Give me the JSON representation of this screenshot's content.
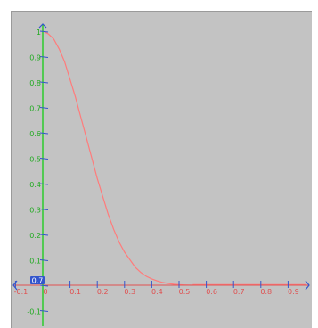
{
  "chart_data": {
    "type": "line",
    "title": "",
    "xlabel": "",
    "ylabel": "",
    "xlim": [
      -0.12,
      1.0
    ],
    "ylim": [
      -0.12,
      1.02
    ],
    "x_ticks": [
      -0.1,
      0,
      0.1,
      0.2,
      0.3,
      0.4,
      0.5,
      0.6,
      0.7,
      0.8,
      0.9
    ],
    "x_tick_labels": [
      "-0.1",
      "0",
      "0.1",
      "0.2",
      "0.3",
      "0.4",
      "0.5",
      "0.6",
      "0.7",
      "0.8",
      "0.9"
    ],
    "y_ticks": [
      -0.1,
      0,
      0.1,
      0.2,
      0.3,
      0.4,
      0.5,
      0.6,
      0.7,
      0.8,
      0.9,
      1.0
    ],
    "y_tick_labels": [
      "-0.1",
      "0",
      "0.1",
      "0.2",
      "0.3",
      "0.4",
      "0.5",
      "0.6",
      "0.7",
      "0.8",
      "0.9",
      "1"
    ],
    "cursor_readout": "0.7",
    "grid": false,
    "legend": "none",
    "colors": {
      "background": "#c3c3c3",
      "curve": "#ff7b7b",
      "x_axis": "#e05050",
      "y_axis": "#22cc22",
      "x_tick_labels": "#e05050",
      "y_tick_labels": "#22aa22",
      "axis_arrows": "#3355cc",
      "readout_box": "#3355cc",
      "readout_text": "#ffffff"
    },
    "series": [
      {
        "x": [
          0,
          0.02,
          0.04,
          0.06,
          0.08,
          0.1,
          0.12,
          0.14,
          0.16,
          0.18,
          0.2,
          0.22,
          0.24,
          0.26,
          0.28,
          0.3,
          0.32,
          0.34,
          0.36,
          0.38,
          0.4,
          0.42,
          0.44,
          0.46,
          0.48,
          0.5,
          0.52,
          0.55
        ],
        "y": [
          1.0,
          0.99,
          0.97,
          0.93,
          0.88,
          0.81,
          0.74,
          0.66,
          0.58,
          0.5,
          0.42,
          0.35,
          0.28,
          0.22,
          0.17,
          0.13,
          0.1,
          0.07,
          0.05,
          0.035,
          0.025,
          0.017,
          0.011,
          0.007,
          0.004,
          0.002,
          0.001,
          0.0
        ]
      }
    ]
  }
}
